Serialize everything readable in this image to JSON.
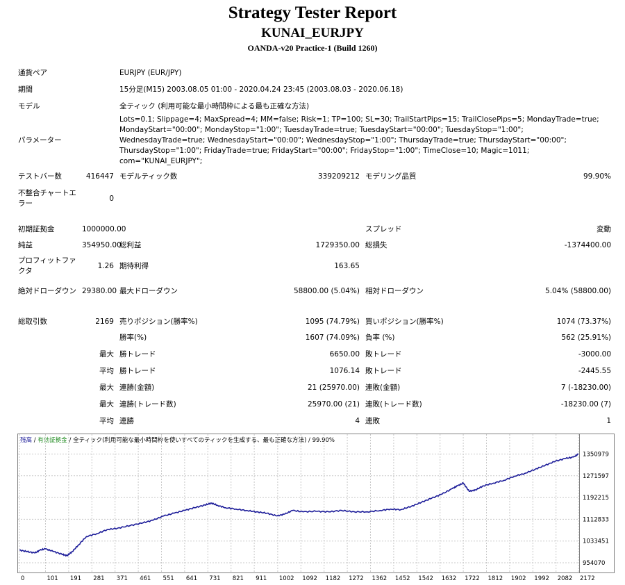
{
  "header": {
    "title": "Strategy Tester Report",
    "ea_name": "KUNAI_EURJPY",
    "server": "OANDA-v20 Practice-1 (Build 1260)"
  },
  "details": {
    "symbol_label": "通貨ペア",
    "symbol_value": "EURJPY (EUR/JPY)",
    "period_label": "期間",
    "period_value": "15分足(M15) 2003.08.05 01:00 - 2020.04.24 23:45 (2003.08.03 - 2020.06.18)",
    "model_label": "モデル",
    "model_value": "全ティック (利用可能な最小時間枠による最も正確な方法)",
    "params_label": "パラメーター",
    "params_value": "Lots=0.1; Slippage=4; MaxSpread=4; MM=false; Risk=1; TP=100; SL=30; TrailStartPips=15; TrailClosePips=5; MondayTrade=true; MondayStart=\"00:00\"; MondayStop=\"1:00\"; TuesdayTrade=true; TuesdayStart=\"00:00\"; TuesdayStop=\"1:00\"; WednesdayTrade=true; WednesdayStart=\"00:00\"; WednesdayStop=\"1:00\"; ThursdayTrade=true; ThursdayStart=\"00:00\"; ThursdayStop=\"1:00\"; FridayTrade=true; FridayStart=\"00:00\"; FridayStop=\"1:00\"; TimeClose=10; Magic=1011; com=\"KUNAI_EURJPY\";"
  },
  "stats": {
    "bars_label": "テストバー数",
    "bars_value": "416447",
    "ticks_label": "モデルティック数",
    "ticks_value": "339209212",
    "quality_label": "モデリング品質",
    "quality_value": "99.90%",
    "mismatch_label": "不整合チャートエラー",
    "mismatch_value": "0",
    "deposit_label": "初期証拠金",
    "deposit_value": "1000000.00",
    "spread_label": "スプレッド",
    "spread_value": "変動",
    "net_label": "純益",
    "net_value": "354950.00",
    "gross_profit_label": "総利益",
    "gross_profit_value": "1729350.00",
    "gross_loss_label": "総損失",
    "gross_loss_value": "-1374400.00",
    "pf_label": "プロフィットファクタ",
    "pf_value": "1.26",
    "expected_label": "期待利得",
    "expected_value": "163.65",
    "abs_dd_label": "絶対ドローダウン",
    "abs_dd_value": "29380.00",
    "max_dd_label": "最大ドローダウン",
    "max_dd_value": "58800.00 (5.04%)",
    "rel_dd_label": "相対ドローダウン",
    "rel_dd_value": "5.04% (58800.00)",
    "trades_label": "総取引数",
    "trades_value": "2169",
    "short_label": "売りポジション(勝率%)",
    "short_value": "1095 (74.79%)",
    "long_label": "買いポジション(勝率%)",
    "long_value": "1074 (73.37%)",
    "win_label": "勝率(%)",
    "win_value": "1607 (74.09%)",
    "loss_label": "負率 (%)",
    "loss_value": "562 (25.91%)",
    "largest_label": "最大",
    "largest_win_label": "勝トレード",
    "largest_win_value": "6650.00",
    "largest_loss_label": "敗トレード",
    "largest_loss_value": "-3000.00",
    "average_label": "平均",
    "average_win_label": "勝トレード",
    "average_win_value": "1076.14",
    "average_loss_label": "敗トレード",
    "average_loss_value": "-2445.55",
    "max1_label": "最大",
    "max_consec_wins_label": "連勝(金額)",
    "max_consec_wins_value": "21 (25970.00)",
    "max_consec_losses_label": "連敗(金額)",
    "max_consec_losses_value": "7 (-18230.00)",
    "max2_label": "最大",
    "max_consec_profit_label": "連勝(トレード数)",
    "max_consec_profit_value": "25970.00 (21)",
    "max_consec_loss_label": "連敗(トレード数)",
    "max_consec_loss_value": "-18230.00 (7)",
    "avg2_label": "平均",
    "avg_consec_wins_label": "連勝",
    "avg_consec_wins_value": "4",
    "avg_consec_losses_label": "連敗",
    "avg_consec_losses_value": "1"
  },
  "chart_data": {
    "type": "line",
    "legend": {
      "balance": "残高",
      "sep1": " / ",
      "equity": "有効証拠金",
      "sep2": " / ",
      "model": "全ティック(利用可能な最小時間枠を使いすべてのティックを生成する、最も正確な方法)",
      "sep3": " / ",
      "quality": "99.90%"
    },
    "legend_placement": "top-left",
    "grid": true,
    "xlim": [
      0,
      2169
    ],
    "ylim": [
      954070,
      1370000
    ],
    "x_ticks": [
      0,
      101,
      191,
      281,
      371,
      461,
      551,
      641,
      731,
      821,
      911,
      1002,
      1092,
      1182,
      1272,
      1362,
      1452,
      1542,
      1632,
      1722,
      1812,
      1902,
      1992,
      2082,
      2172
    ],
    "y_ticks": [
      954070,
      1033451,
      1112833,
      1192215,
      1271597,
      1350979
    ],
    "colors": {
      "line": "#1c1c99",
      "balance_label": "#1c1c99",
      "equity_label": "#1f8a1f",
      "grid": "#c8c8c8"
    },
    "series": [
      {
        "name": "残高",
        "x": [
          0,
          30,
          60,
          80,
          100,
          130,
          165,
          185,
          205,
          230,
          260,
          300,
          340,
          380,
          430,
          480,
          520,
          560,
          600,
          640,
          680,
          720,
          745,
          770,
          800,
          840,
          880,
          920,
          960,
          1000,
          1030,
          1060,
          1100,
          1150,
          1200,
          1250,
          1300,
          1350,
          1400,
          1440,
          1480,
          1520,
          1560,
          1600,
          1640,
          1680,
          1700,
          1722,
          1745,
          1770,
          1800,
          1840,
          1880,
          1920,
          1960,
          2000,
          2040,
          2080,
          2120,
          2150,
          2169
        ],
        "y": [
          1000000,
          995000,
          990000,
          1000000,
          1005000,
          996000,
          985000,
          980000,
          995000,
          1020000,
          1050000,
          1060000,
          1075000,
          1080000,
          1090000,
          1100000,
          1110000,
          1125000,
          1135000,
          1145000,
          1155000,
          1165000,
          1172000,
          1163000,
          1155000,
          1150000,
          1145000,
          1140000,
          1135000,
          1125000,
          1132000,
          1145000,
          1140000,
          1142000,
          1140000,
          1145000,
          1140000,
          1140000,
          1145000,
          1150000,
          1148000,
          1160000,
          1175000,
          1190000,
          1205000,
          1225000,
          1235000,
          1245000,
          1215000,
          1220000,
          1235000,
          1245000,
          1255000,
          1270000,
          1280000,
          1295000,
          1310000,
          1325000,
          1335000,
          1340000,
          1350979
        ]
      }
    ]
  }
}
